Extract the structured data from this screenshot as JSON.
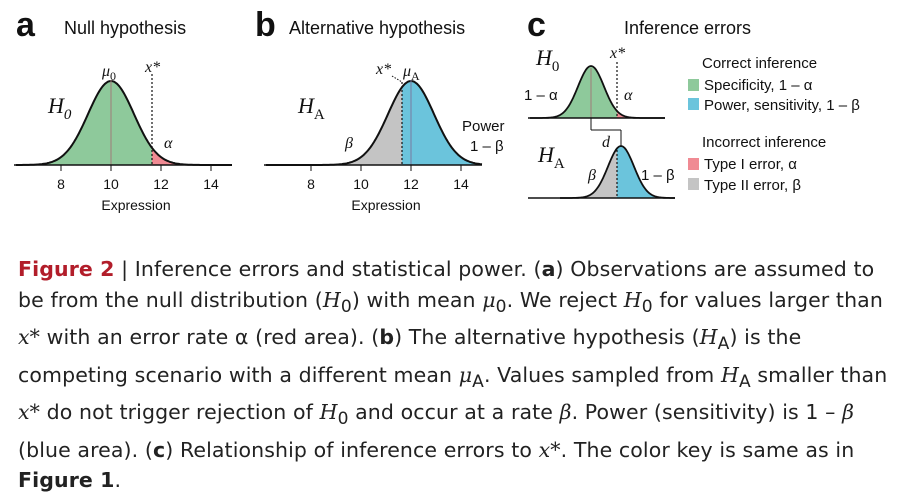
{
  "panels": {
    "a": {
      "letter": "a",
      "title": "Null hypothesis",
      "h_label": "H",
      "h_sub": "0",
      "mu_label": "μ",
      "mu_sub": "0",
      "xstar": "x*",
      "alpha": "α",
      "xlabel": "Expression",
      "ticks": [
        "8",
        "10",
        "12",
        "14"
      ]
    },
    "b": {
      "letter": "b",
      "title": "Alternative hypothesis",
      "h_label": "H",
      "h_sub": "A",
      "mu_label": "μ",
      "mu_sub": "A",
      "xstar": "x*",
      "beta": "β",
      "power_line1": "Power",
      "power_line2": "1 – β",
      "xlabel": "Expression",
      "ticks": [
        "8",
        "10",
        "12",
        "14"
      ]
    },
    "c": {
      "letter": "c",
      "title": "Inference errors",
      "h0_label": "H",
      "h0_sub": "0",
      "ha_label": "H",
      "ha_sub": "A",
      "xstar": "x*",
      "one_minus_alpha": "1 – α",
      "alpha": "α",
      "beta": "β",
      "one_minus_beta": "1 – β",
      "d": "d",
      "legend": {
        "correct_header": "Correct inference",
        "correct": [
          {
            "label": "Specificity, 1 – α",
            "color": "#8ec99b"
          },
          {
            "label": "Power, sensitivity, 1 – β",
            "color": "#6bc4dc"
          }
        ],
        "incorrect_header": "Incorrect inference",
        "incorrect": [
          {
            "label": "Type I error, α",
            "color": "#f08a93"
          },
          {
            "label": "Type II error, β",
            "color": "#c4c4c4"
          }
        ]
      }
    }
  },
  "colors": {
    "green": "#8ec99b",
    "blue": "#6bc4dc",
    "red": "#f08a93",
    "gray": "#c4c4c4",
    "caption_label": "#b21d2a"
  },
  "caption": {
    "label": "Figure 2",
    "separator": " | ",
    "s1": "Inference errors and statistical power. (",
    "a": "a",
    "s2": ") Observations are assumed to be from the null distribution (",
    "h0": "H",
    "h0_sub": "0",
    "s3": ") with mean ",
    "mu0": "μ",
    "mu0_sub": "0",
    "s4": ". We reject ",
    "h0b": "H",
    "h0b_sub": "0",
    "s5": " for values larger than ",
    "xstar1": "x*",
    "s6": " with an error rate α (red area). (",
    "b": "b",
    "s7": ") The alternative hypothesis (",
    "ha": "H",
    "ha_sub": "A",
    "s8": ") is the competing scenario with a different mean ",
    "mua": "μ",
    "mua_sub": "A",
    "s9": ". Values sampled from ",
    "ha2": "H",
    "ha2_sub": "A",
    "s10": " smaller than ",
    "xstar2": "x*",
    "s11": " do not trigger rejection of ",
    "h0c": "H",
    "h0c_sub": "0",
    "s12": " and occur at a rate ",
    "beta1": "β",
    "s13": ". Power (sensitivity) is 1 – ",
    "beta2": "β",
    "s14": " (blue area). (",
    "c": "c",
    "s15": ") Relationship of inference errors to ",
    "xstar3": "x*",
    "s16": ". The color key is same as in ",
    "fig1": "Figure 1",
    "s17": "."
  }
}
